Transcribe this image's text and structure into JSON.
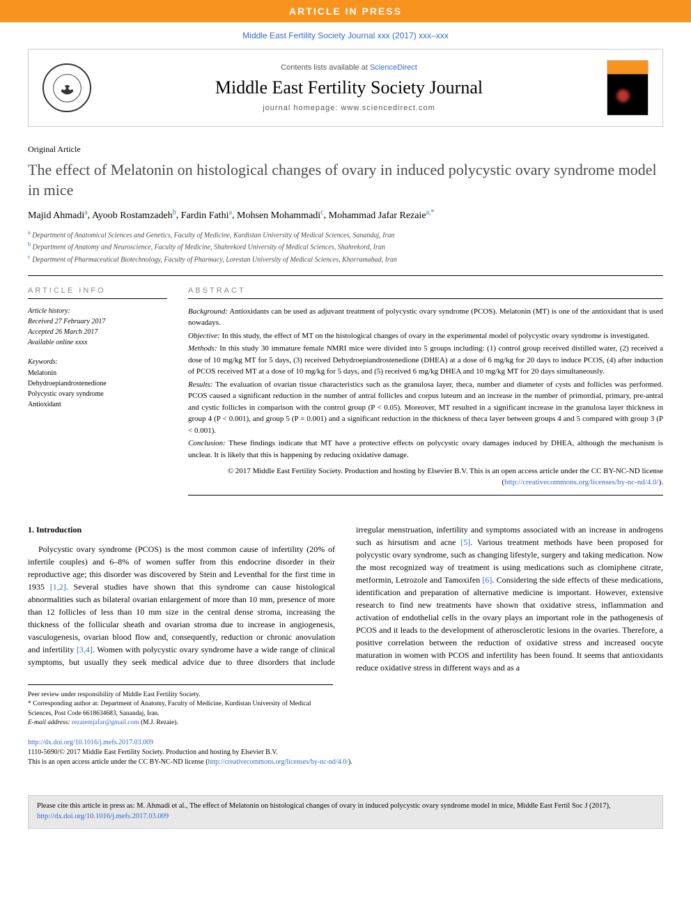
{
  "banner": "ARTICLE IN PRESS",
  "journal_ref": "Middle East Fertility Society Journal xxx (2017) xxx–xxx",
  "header": {
    "contents_prefix": "Contents lists available at ",
    "contents_link": "ScienceDirect",
    "journal_name": "Middle East Fertility Society Journal",
    "homepage": "journal homepage: www.sciencedirect.com"
  },
  "article_type": "Original Article",
  "title": "The effect of Melatonin on histological changes of ovary in induced polycystic ovary syndrome model in mice",
  "authors": [
    {
      "name": "Majid Ahmadi",
      "sup": "a"
    },
    {
      "name": "Ayoob Rostamzadeh",
      "sup": "b"
    },
    {
      "name": "Fardin Fathi",
      "sup": "a"
    },
    {
      "name": "Mohsen Mohammadi",
      "sup": "c"
    },
    {
      "name": "Mohammad Jafar Rezaie",
      "sup": "a,*"
    }
  ],
  "affiliations": [
    {
      "sup": "a",
      "text": "Department of Anatomical Sciences and Genetics, Faculty of Medicine, Kurdistan University of Medical Sciences, Sanandaj, Iran"
    },
    {
      "sup": "b",
      "text": "Department of Anatomy and Neuroscience, Faculty of Medicine, Shahrekord University of Medical Sciences, Shahrekord, Iran"
    },
    {
      "sup": "c",
      "text": "Department of Pharmaceutical Biotechnology, Faculty of Pharmacy, Lorestan University of Medical Sciences, Khorramabad, Iran"
    }
  ],
  "article_info": {
    "heading": "ARTICLE INFO",
    "history_label": "Article history:",
    "received": "Received 27 February 2017",
    "accepted": "Accepted 26 March 2017",
    "online": "Available online xxxx",
    "keywords_label": "Keywords:",
    "keywords": [
      "Melatonin",
      "Dehydroepiandrostenedione",
      "Polycystic ovary syndrome",
      "Antioxidant"
    ]
  },
  "abstract": {
    "heading": "ABSTRACT",
    "background_label": "Background:",
    "background": "Antioxidants can be used as adjuvant treatment of polycystic ovary syndrome (PCOS). Melatonin (MT) is one of the antioxidant that is used nowadays.",
    "objective_label": "Objective:",
    "objective": "In this study, the effect of MT on the histological changes of ovary in the experimental model of polycystic ovary syndrome is investigated.",
    "methods_label": "Methods:",
    "methods": "In this study 30 immature female NMRI mice were divided into 5 groups including: (1) control group received distilled water, (2) received a dose of 10 mg/kg MT for 5 days, (3) received Dehydroepiandrostenedione (DHEA) at a dose of 6 mg/kg for 20 days to induce PCOS, (4) after induction of PCOS received MT at a dose of 10 mg/kg for 5 days, and (5) received 6 mg/kg DHEA and 10 mg/kg MT for 20 days simultaneously.",
    "results_label": "Results:",
    "results": "The evaluation of ovarian tissue characteristics such as the granulosa layer, theca, number and diameter of cysts and follicles was performed. PCOS caused a significant reduction in the number of antral follicles and corpus luteum and an increase in the number of primordial, primary, pre-antral and cystic follicles in comparison with the control group (P < 0.05). Moreover, MT resulted in a significant increase in the granulosa layer thickness in group 4 (P < 0.001), and group 5 (P = 0.001) and a significant reduction in the thickness of theca layer between groups 4 and 5 compared with group 3 (P < 0.001).",
    "conclusion_label": "Conclusion:",
    "conclusion": "These findings indicate that MT have a protective effects on polycystic ovary damages induced by DHEA, although the mechanism is unclear. It is likely that this is happening by reducing oxidative damage.",
    "copyright": "© 2017 Middle East Fertility Society. Production and hosting by Elsevier B.V. This is an open access article under the CC BY-NC-ND license (",
    "license_link": "http://creativecommons.org/licenses/by-nc-nd/4.0/",
    "copyright_end": ")."
  },
  "body": {
    "heading": "1. Introduction",
    "para1_a": "Polycystic ovary syndrome (PCOS) is the most common cause of infertility (20% of infertile couples) and 6–8% of women suffer from this endocrine disorder in their reproductive age; this disorder was discovered by Stein and Leventhal for the first time in 1935 ",
    "ref1": "[1,2]",
    "para1_b": ". Several studies have shown that this syndrome can cause histological abnormalities such as bilateral ovarian enlargement of more than 10 mm, presence of more than 12 follicles of less than 10 mm size in the central dense stroma, increasing the thickness of the follicular sheath and ovarian stroma due to increase in angiogenesis, vasculogenesis, ovarian blood flow and, consequently, reduction or chronic anovulation and infertility ",
    "ref2": "[3,4]",
    "para1_c": ". Women with polycystic ovary syndrome have a wide range of clinical symptoms, but usually they seek medical advice due to three disorders that include irregular menstruation, infertility and symptoms associated with an increase in androgens such as hirsutism and acne ",
    "ref3": "[5]",
    "para1_d": ". Various treatment methods have been proposed for polycystic ovary syndrome, such as changing lifestyle, surgery and taking medication. Now the most recognized way of treatment is using medications such as clomiphene citrate, metformin, Letrozole and Tamoxifen ",
    "ref4": "[6]",
    "para1_e": ". Considering the side effects of these medications, identification and preparation of alternative medicine is important. However, extensive research to find new treatments have shown that oxidative stress, inflammation and activation of endothelial cells in the ovary plays an important role in the pathogenesis of PCOS and it leads to the development of atherosclerotic lesions in the ovaries. Therefore, a positive correlation between the reduction of oxidative stress and increased oocyte maturation in women with PCOS and infertility has been found. It seems that antioxidants reduce oxidative stress in different ways and as a"
  },
  "footnotes": {
    "peer": "Peer review under responsibility of Middle East Fertility Society.",
    "corr_label": "* Corresponding author at: ",
    "corr": "Department of Anatomy, Faculty of Medicine, Kurdistan University of Medical Sciences, Post Code 6618634683, Sanandaj, Iran.",
    "email_label": "E-mail address: ",
    "email": "rezaiemjafar@gmail.com",
    "email_suffix": " (M.J. Rezaie)."
  },
  "doi": {
    "link": "http://dx.doi.org/10.1016/j.mefs.2017.03.009",
    "issn": "1110-5690/© 2017 Middle East Fertility Society. Production and hosting by Elsevier B.V.",
    "license_text": "This is an open access article under the CC BY-NC-ND license (",
    "license_link": "http://creativecommons.org/licenses/by-nc-nd/4.0/",
    "license_end": ")."
  },
  "cite_box": {
    "text": "Please cite this article in press as: M. Ahmadi et al., The effect of Melatonin on histological changes of ovary in induced polycystic ovary syndrome model in mice, Middle East Fertil Soc J (2017), ",
    "link": "http://dx.doi.org/10.1016/j.mefs.2017.03.009"
  },
  "colors": {
    "banner_bg": "#f7931e",
    "link": "#3366cc",
    "text": "#000000",
    "muted": "#888888"
  }
}
